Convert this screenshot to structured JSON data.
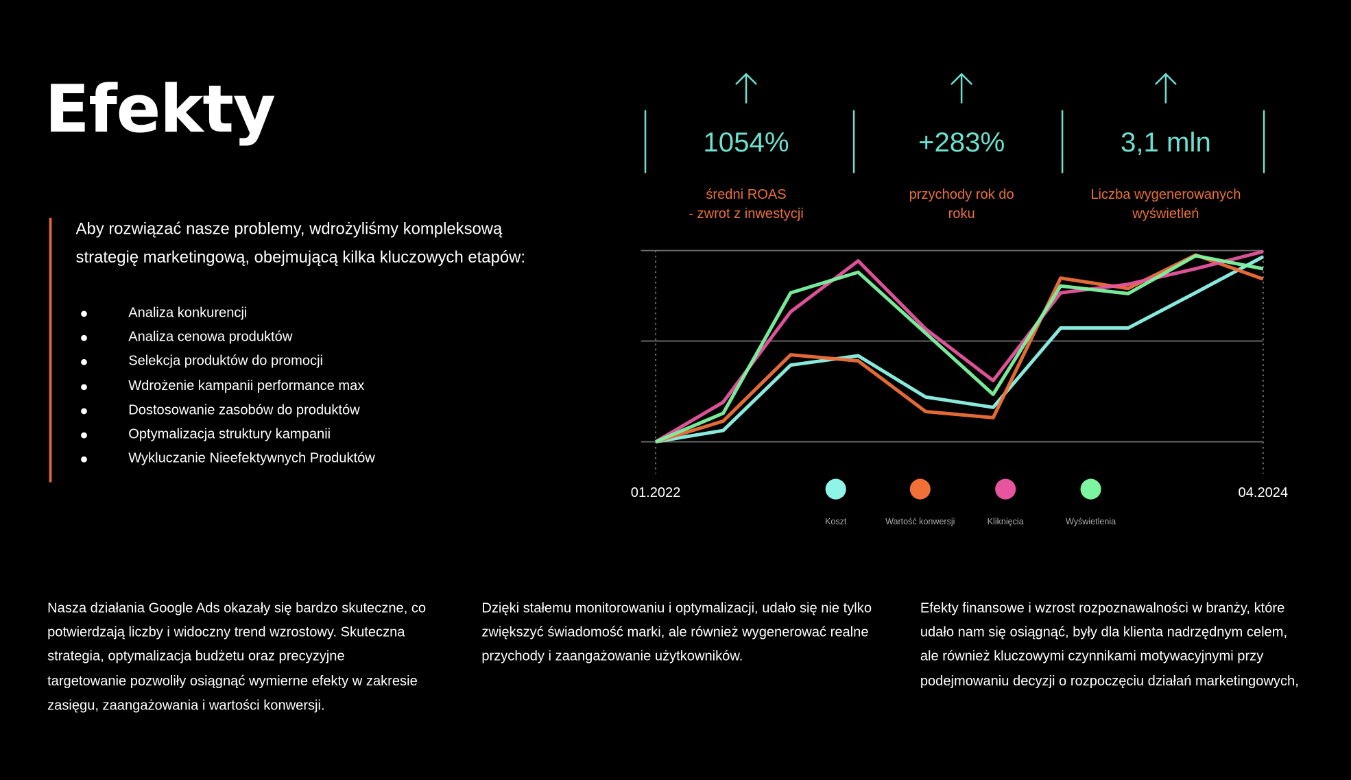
{
  "header": {
    "title": "Efekty"
  },
  "intro": "Aby rozwiązać nasze problemy, wdrożyliśmy kompleksową strategię marketingową, obejmującą kilka kluczowych etapów:",
  "bullets": [
    "Analiza konkurencji",
    "Analiza cenowa produktów",
    "Selekcja produktów do promocji",
    "Wdrożenie kampanii performance max",
    "Dostosowanie zasobów do produktów",
    "Optymalizacja struktury kampanii",
    "Wykluczanie Nieefektywnych Produktów"
  ],
  "stats": [
    {
      "value": "1054%",
      "label": "średni ROAS\n- zwrot z inwestycji"
    },
    {
      "value": "+283%",
      "label": "przychody rok do\nroku"
    },
    {
      "value": "3,1 mln",
      "label": "Liczba wygenerowanych\nwyświetleń"
    }
  ],
  "chart_data": {
    "type": "line",
    "categories": [
      "01.2022",
      null,
      null,
      null,
      null,
      null,
      null,
      null,
      null,
      "04.2024"
    ],
    "ylim": [
      0,
      100
    ],
    "yticks": [
      0,
      52.7,
      100
    ],
    "grid": true,
    "series": [
      {
        "name": "Koszt",
        "color": "#8ff5e8",
        "values": [
          0,
          5.9,
          40.1,
          45.0,
          23.4,
          18.0,
          59.5,
          59.5,
          78.0,
          96.8
        ]
      },
      {
        "name": "Wartość konwersji",
        "color": "#f07038",
        "values": [
          0,
          10.8,
          45.5,
          42.3,
          15.8,
          12.6,
          85.6,
          80.2,
          97.7,
          85.1
        ]
      },
      {
        "name": "Kliknięcia",
        "color": "#e8559f",
        "values": [
          0,
          20.7,
          68.0,
          94.6,
          59.0,
          32.0,
          77.9,
          82.4,
          90.5,
          99.5
        ]
      },
      {
        "name": "Wyświetlenia",
        "color": "#7df5a0",
        "values": [
          0,
          14.9,
          77.9,
          88.7,
          56.8,
          24.8,
          81.5,
          77.5,
          97.3,
          90.5
        ]
      }
    ]
  },
  "paragraphs": [
    "Nasza działania Google Ads okazały się bardzo skuteczne, co potwierdzają liczby i widoczny trend wzrostowy. Skuteczna strategia, optymalizacja budżetu oraz precyzyjne targetowanie pozwoliły osiągnąć wymierne efekty  w zakresie zasięgu, zaangażowania i wartości konwersji.",
    "Dzięki stałemu monitorowaniu i optymalizacji, udało się nie tylko zwiększyć świadomość marki, ale również wygenerować realne przychody i zaangażowanie użytkowników.",
    "Efekty finansowe i wzrost rozpoznawalności w branży, które udało nam się osiągnąć, były dla klienta nadrzędnym celem, ale również kluczowymi czynnikami motywacyjnymi przy podejmowaniu decyzji o rozpoczęciu działań marketingowych,"
  ]
}
